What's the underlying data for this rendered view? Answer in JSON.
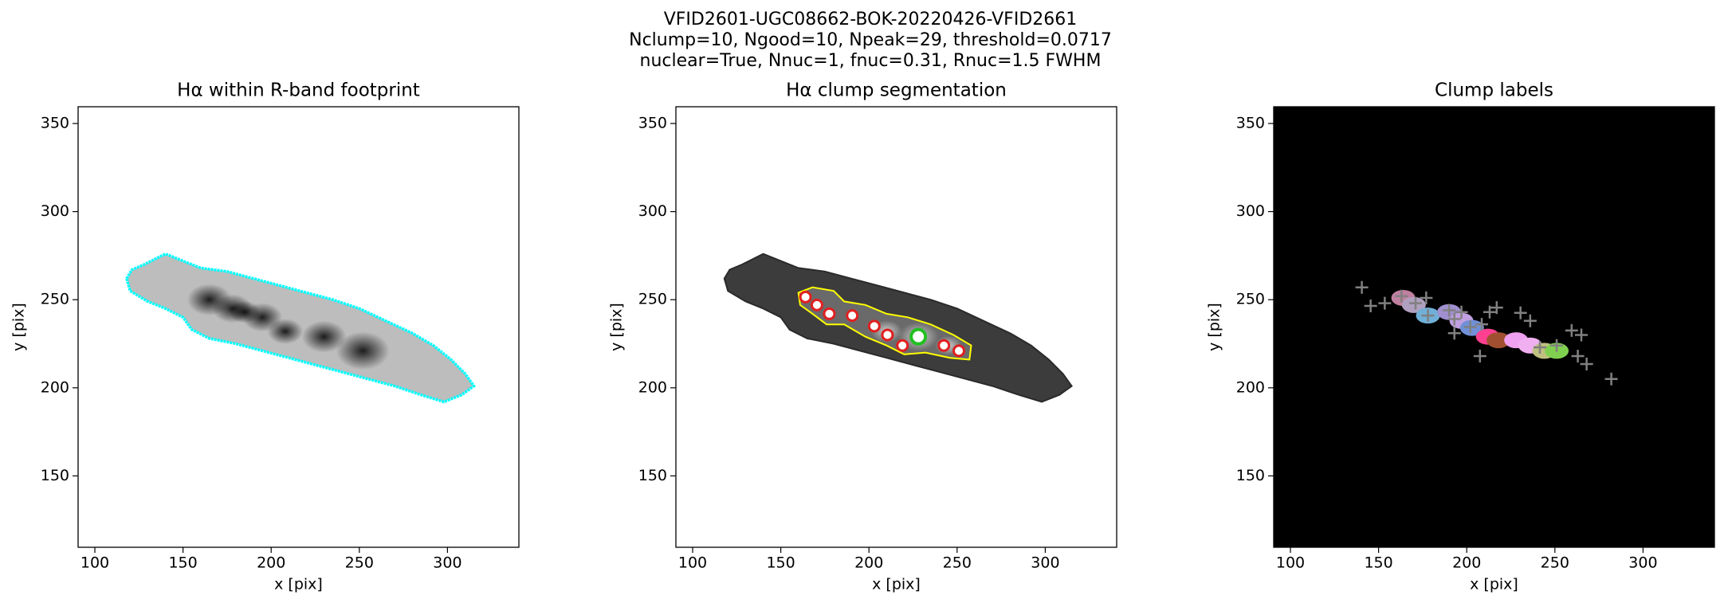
{
  "suptitle": [
    "VFID2601-UGC08662-BOK-20220426-VFID2661",
    "Nclump=10, Ngood=10, Npeak=29, threshold=0.0717",
    "nuclear=True, Nnuc=1, fnuc=0.31, Rnuc=1.5 FWHM"
  ],
  "chart_data": [
    {
      "type": "footprint",
      "title": "Hα within R-band footprint",
      "xlabel": "x [pix]",
      "ylabel": "y [pix]",
      "xlim": [
        90.5,
        340.5
      ],
      "ylim": [
        109.5,
        359.5
      ],
      "xticks": [
        100,
        150,
        200,
        250,
        300
      ],
      "yticks": [
        150,
        200,
        250,
        300,
        350
      ],
      "background": "#ffffff",
      "color": "#00ffff"
    },
    {
      "type": "segmentation",
      "title": "Hα clump segmentation",
      "xlabel": "x [pix]",
      "ylabel": "y [pix]",
      "xlim": [
        90.5,
        340.5
      ],
      "ylim": [
        109.5,
        359.5
      ],
      "xticks": [
        100,
        150,
        200,
        250,
        300
      ],
      "yticks": [
        150,
        200,
        250,
        300,
        350
      ],
      "background": "#ffffff",
      "color": "#ffff00",
      "x": [
        164,
        170.5,
        177.5,
        190.5,
        203,
        210.5,
        219,
        228,
        242.5,
        251
      ],
      "y": [
        251.5,
        247,
        242,
        241,
        235,
        230,
        224,
        229,
        224,
        221
      ],
      "marker_colors": [
        "#e02020",
        "#e02020",
        "#e02020",
        "#e02020",
        "#e02020",
        "#e02020",
        "#e02020",
        "#20c020",
        "#e02020",
        "#e02020"
      ]
    },
    {
      "type": "labels",
      "title": "Clump labels",
      "xlabel": "x [pix]",
      "ylabel": "y [pix]",
      "xlim": [
        90.5,
        340.5
      ],
      "ylim": [
        109.5,
        359.5
      ],
      "xticks": [
        100,
        150,
        200,
        250,
        300
      ],
      "yticks": [
        150,
        200,
        250,
        300,
        350
      ],
      "background": "#000000",
      "color": "#808080",
      "x": [
        140.5,
        145.5,
        153.5,
        163,
        171,
        177,
        178,
        190,
        193,
        197,
        193,
        202,
        208.5,
        213,
        217,
        230.5,
        236,
        207.5,
        241.5,
        251,
        259.5,
        265,
        263,
        268,
        282
      ],
      "y": [
        257,
        246.5,
        248,
        252,
        248,
        251,
        241,
        244,
        239,
        243,
        231,
        234.5,
        236,
        243,
        245.5,
        242.5,
        238,
        218,
        223,
        224,
        232.5,
        230,
        218,
        213.5,
        205
      ]
    }
  ]
}
